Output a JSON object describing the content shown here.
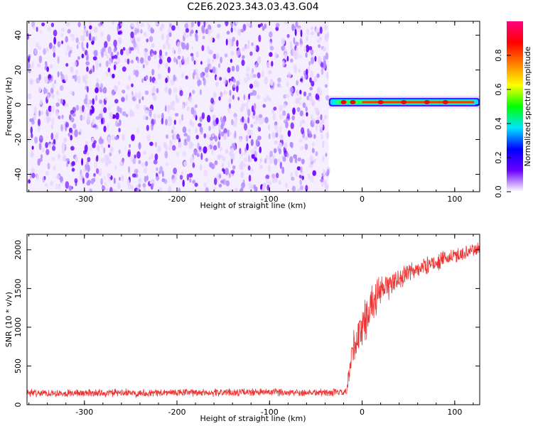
{
  "title": "C2E6.2023.343.03.43.G04",
  "chart_data": [
    {
      "type": "heatmap",
      "xlabel": "Height of straight line (km)",
      "ylabel": "Frequency (Hz)",
      "xlim": [
        -362,
        127
      ],
      "ylim": [
        -50,
        48
      ],
      "x_ticks": [
        -300,
        -200,
        -100,
        0,
        100
      ],
      "y_ticks": [
        -40,
        -20,
        0,
        20,
        40
      ],
      "noise_region_x": [
        -362,
        -36
      ],
      "signal_line": {
        "x_range": [
          -36,
          127
        ],
        "frequency_hz": 1.5,
        "bright_spots_x": [
          -20,
          -10,
          20,
          45,
          70,
          90
        ]
      },
      "colorbar": {
        "label": "Normalized spectral amplitude",
        "range": [
          0.0,
          1.0
        ],
        "ticks": [
          "0.0",
          "0.2",
          "0.4",
          "0.6",
          "0.8"
        ],
        "colors": [
          "#ffffff",
          "#6a00ff",
          "#0000ff",
          "#00e5ff",
          "#00ff00",
          "#ffff00",
          "#ff7f00",
          "#ff0000",
          "#ff0080"
        ]
      },
      "colors": {
        "noise_low": "#e6d4ff",
        "noise_mid": "#b58cff",
        "noise_high": "#6a00ff"
      }
    },
    {
      "type": "line",
      "xlabel": "Height of straight line (km)",
      "ylabel": "SNR (10 * v/v)",
      "xlim": [
        -362,
        127
      ],
      "ylim": [
        0,
        2200
      ],
      "x_ticks": [
        -300,
        -200,
        -100,
        0,
        100
      ],
      "y_ticks": [
        0,
        500,
        1000,
        1500,
        2000
      ],
      "series": [
        {
          "color": "#ee3333",
          "x": [
            -362,
            -300,
            -200,
            -100,
            -50,
            -17,
            -15,
            -10,
            0,
            10,
            20,
            30,
            50,
            70,
            100,
            127
          ],
          "y": [
            150,
            150,
            155,
            160,
            158,
            155,
            300,
            700,
            1000,
            1300,
            1450,
            1550,
            1700,
            1800,
            1920,
            2020
          ],
          "noise_amplitude": [
            60,
            60,
            60,
            60,
            60,
            60,
            150,
            350,
            350,
            300,
            250,
            200,
            150,
            130,
            120,
            100
          ]
        }
      ]
    }
  ]
}
